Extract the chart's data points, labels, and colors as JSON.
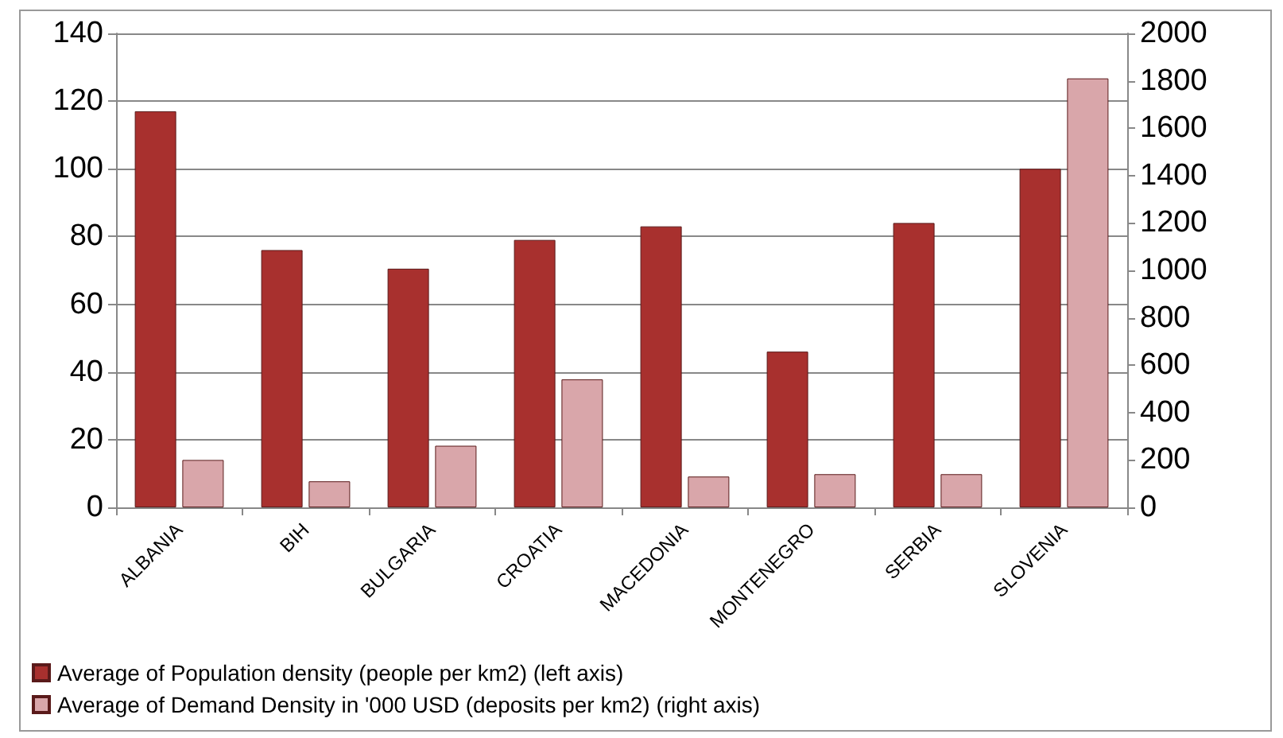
{
  "chart_data": {
    "type": "bar",
    "categories": [
      "ALBANIA",
      "BIH",
      "BULGARIA",
      "CROATIA",
      "MACEDONIA",
      "MONTENEGRO",
      "SERBIA",
      "SLOVENIA"
    ],
    "series": [
      {
        "name": "Average of Population density (people per km2) (left axis)",
        "color": "#a8302e",
        "values": [
          117,
          76,
          70.5,
          79,
          83,
          46,
          84,
          100
        ]
      },
      {
        "name": "Average of Demand Density in '000 USD (deposits per km2) (right axis)",
        "color": "#d9a6aa",
        "axis": "y2",
        "values": [
          200,
          110,
          260,
          540,
          130,
          140,
          140,
          1810
        ]
      }
    ],
    "ylim": [
      0,
      140
    ],
    "yticks": [
      0,
      20,
      40,
      60,
      80,
      100,
      120,
      140
    ],
    "y2lim": [
      0,
      2000
    ],
    "y2ticks": [
      0,
      200,
      400,
      600,
      800,
      1000,
      1200,
      1400,
      1600,
      1800,
      2000
    ],
    "grid": "y",
    "legend": "bottom"
  }
}
